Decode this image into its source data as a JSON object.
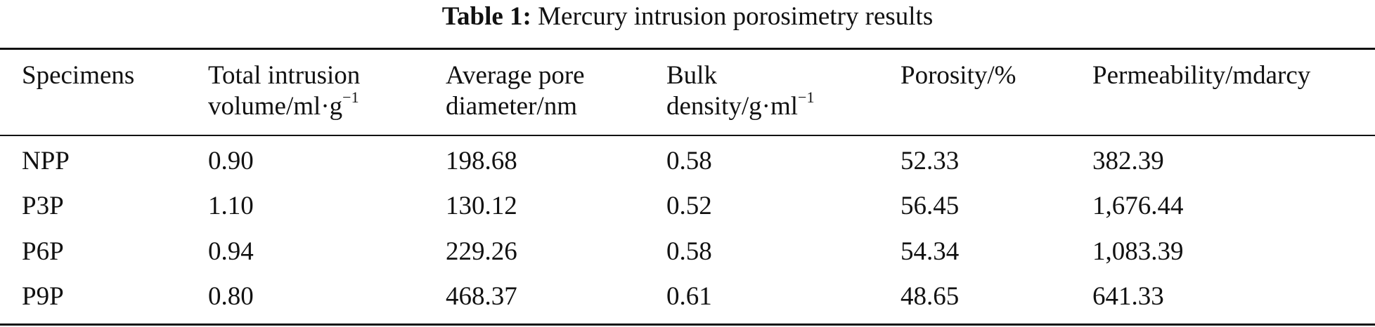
{
  "caption": {
    "label": "Table 1:",
    "text": "Mercury intrusion porosimetry results"
  },
  "headers": [
    {
      "line1": "Specimens",
      "line2": "",
      "sup": ""
    },
    {
      "line1": "Total intrusion",
      "line2": "volume/ml·g",
      "sup": "−1"
    },
    {
      "line1": "Average pore",
      "line2": "diameter/nm",
      "sup": ""
    },
    {
      "line1": "Bulk",
      "line2": "density/g·ml",
      "sup": "−1"
    },
    {
      "line1": "Porosity/%",
      "line2": "",
      "sup": ""
    },
    {
      "line1": "Permeability/mdarcy",
      "line2": "",
      "sup": ""
    }
  ],
  "rows": [
    [
      "NPP",
      "0.90",
      "198.68",
      "0.58",
      "52.33",
      "382.39"
    ],
    [
      "P3P",
      "1.10",
      "130.12",
      "0.52",
      "56.45",
      "1,676.44"
    ],
    [
      "P6P",
      "0.94",
      "229.26",
      "0.58",
      "54.34",
      "1,083.39"
    ],
    [
      "P9P",
      "0.80",
      "468.37",
      "0.61",
      "48.65",
      "641.33"
    ]
  ]
}
